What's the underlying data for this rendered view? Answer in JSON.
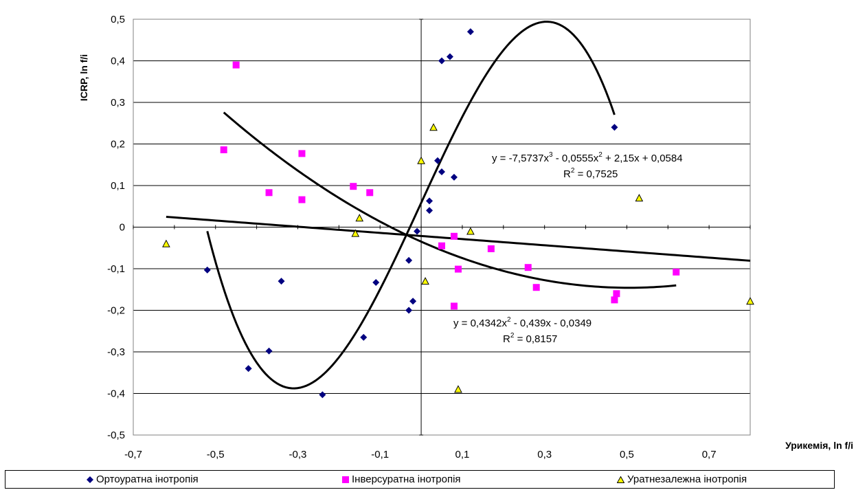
{
  "chart_data": {
    "type": "scatter",
    "title": "",
    "xlabel": "Урикемія, ln f/i",
    "ylabel": "ICRP, ln f/i",
    "xlim": [
      -0.7,
      0.8
    ],
    "ylim": [
      -0.5,
      0.5
    ],
    "x_ticks": [
      "-0,7",
      "-0,5",
      "-0,3",
      "-0,1",
      "0,1",
      "0,3",
      "0,5",
      "0,7"
    ],
    "y_ticks": [
      "0,5",
      "0,4",
      "0,3",
      "0,2",
      "0,1",
      "0",
      "-0,1",
      "-0,2",
      "-0,3",
      "-0,4",
      "-0,5"
    ],
    "grid": "horizontal",
    "legend_position": "bottom",
    "series": [
      {
        "name": "Ортоуратна інотропія",
        "marker": "diamond",
        "color": "#000080",
        "points": [
          [
            0.12,
            0.47
          ],
          [
            0.05,
            0.4
          ],
          [
            0.07,
            0.41
          ],
          [
            0.47,
            0.24
          ],
          [
            0.04,
            0.16
          ],
          [
            0.05,
            0.133
          ],
          [
            0.08,
            0.12
          ],
          [
            0.02,
            0.063
          ],
          [
            0.02,
            0.04
          ],
          [
            -0.01,
            -0.01
          ],
          [
            -0.52,
            -0.103
          ],
          [
            -0.34,
            -0.13
          ],
          [
            -0.03,
            -0.08
          ],
          [
            -0.11,
            -0.133
          ],
          [
            -0.02,
            -0.178
          ],
          [
            -0.03,
            -0.2
          ],
          [
            -0.14,
            -0.265
          ],
          [
            -0.37,
            -0.298
          ],
          [
            -0.42,
            -0.34
          ],
          [
            -0.24,
            -0.403
          ]
        ]
      },
      {
        "name": "Інверсуратна інотропія",
        "marker": "square",
        "color": "#ff00ff",
        "points": [
          [
            -0.45,
            0.39
          ],
          [
            -0.48,
            0.186
          ],
          [
            -0.29,
            0.177
          ],
          [
            -0.165,
            0.098
          ],
          [
            -0.125,
            0.083
          ],
          [
            -0.37,
            0.083
          ],
          [
            -0.29,
            0.066
          ],
          [
            0.08,
            -0.022
          ],
          [
            0.05,
            -0.045
          ],
          [
            0.17,
            -0.052
          ],
          [
            0.26,
            -0.097
          ],
          [
            0.09,
            -0.101
          ],
          [
            0.62,
            -0.108
          ],
          [
            0.28,
            -0.145
          ],
          [
            0.475,
            -0.16
          ],
          [
            0.47,
            -0.175
          ],
          [
            0.08,
            -0.19
          ]
        ]
      },
      {
        "name": "Уратнезалежна інотропія",
        "marker": "triangle",
        "color": "#ffff00",
        "points": [
          [
            0.03,
            0.24
          ],
          [
            0.0,
            0.16
          ],
          [
            0.53,
            0.07
          ],
          [
            -0.15,
            0.022
          ],
          [
            0.12,
            -0.01
          ],
          [
            -0.16,
            -0.015
          ],
          [
            -0.62,
            -0.04
          ],
          [
            0.01,
            -0.13
          ],
          [
            0.8,
            -0.178
          ],
          [
            0.09,
            -0.39
          ]
        ]
      }
    ],
    "trendlines": [
      {
        "kind": "polynomial",
        "coefficients": [
          -7.5737,
          -0.0555,
          2.15,
          0.0584
        ],
        "x_range": [
          -0.52,
          0.47
        ],
        "equation": "y = -7,5737x3 - 0,0555x2 + 2,15x + 0,0584",
        "r2": "R2 = 0,7525"
      },
      {
        "kind": "polynomial",
        "coefficients": [
          0.4342,
          -0.439,
          -0.0349
        ],
        "x_range": [
          -0.48,
          0.62
        ],
        "equation": "y = 0,4342x2 - 0,439x - 0,0349",
        "r2": "R2 = 0,8157"
      },
      {
        "kind": "linear",
        "coefficients": [
          -0.0744,
          -0.0213
        ],
        "x_range": [
          -0.62,
          0.8
        ],
        "equation": "",
        "r2": ""
      }
    ],
    "annotations": {
      "cubic_eq_main": "y = -7,5737x",
      "cubic_eq_sup1": "3",
      "cubic_eq_mid": " - 0,0555x",
      "cubic_eq_sup2": "2",
      "cubic_eq_end": " + 2,15x + 0,0584",
      "cubic_r2_main": "R",
      "cubic_r2_sup": "2",
      "cubic_r2_end": " = 0,7525",
      "quad_eq_main": "y = 0,4342x",
      "quad_eq_sup1": "2",
      "quad_eq_end": " - 0,439x - 0,0349",
      "quad_r2_main": "R",
      "quad_r2_sup": "2",
      "quad_r2_end": " = 0,8157"
    }
  }
}
